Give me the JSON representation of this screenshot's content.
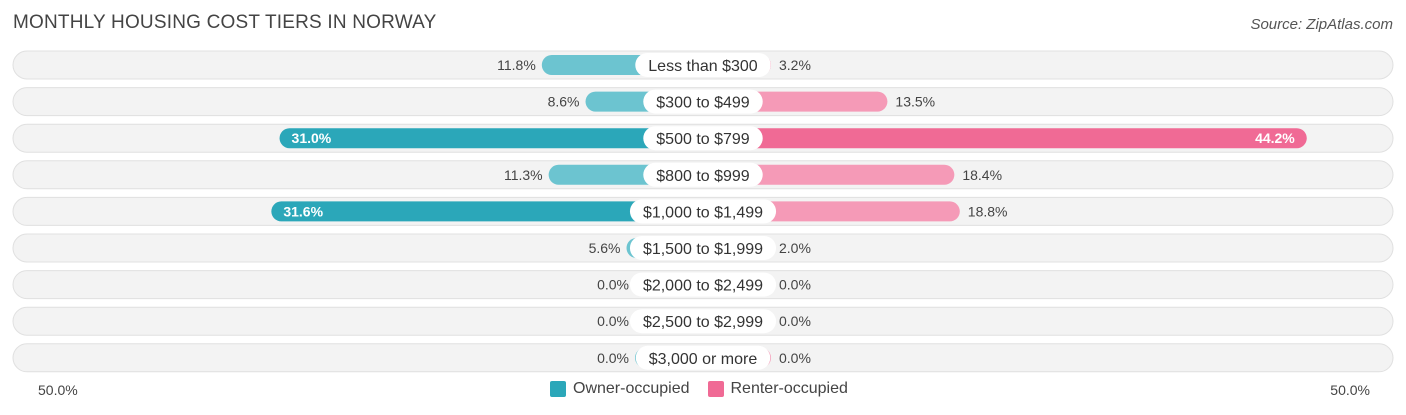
{
  "title": "MONTHLY HOUSING COST TIERS IN NORWAY",
  "source": "Source: ZipAtlas.com",
  "axis": {
    "left_label": "50.0%",
    "right_label": "50.0%"
  },
  "legend": {
    "owner_label": "Owner-occupied",
    "renter_label": "Renter-occupied"
  },
  "colors": {
    "owner_dark": "#2ba7b9",
    "owner_light": "#6cc4d0",
    "renter_dark": "#f06a95",
    "renter_light": "#f59ab7",
    "row_bg": "#efefef"
  },
  "chart_data": {
    "type": "bar",
    "orientation": "horizontal-diverging",
    "xlim": [
      -50,
      50
    ],
    "categories": [
      "Less than $300",
      "$300 to $499",
      "$500 to $799",
      "$800 to $999",
      "$1,000 to $1,499",
      "$1,500 to $1,999",
      "$2,000 to $2,499",
      "$2,500 to $2,999",
      "$3,000 or more"
    ],
    "series": [
      {
        "name": "Owner-occupied",
        "values": [
          11.8,
          8.6,
          31.0,
          11.3,
          31.6,
          5.6,
          0.0,
          0.0,
          0.0
        ],
        "labels": [
          "11.8%",
          "8.6%",
          "31.0%",
          "11.3%",
          "31.6%",
          "5.6%",
          "0.0%",
          "0.0%",
          "0.0%"
        ]
      },
      {
        "name": "Renter-occupied",
        "values": [
          3.2,
          13.5,
          44.2,
          18.4,
          18.8,
          2.0,
          0.0,
          0.0,
          0.0
        ],
        "labels": [
          "3.2%",
          "13.5%",
          "44.2%",
          "18.4%",
          "18.8%",
          "2.0%",
          "0.0%",
          "0.0%",
          "0.0%"
        ]
      }
    ]
  }
}
